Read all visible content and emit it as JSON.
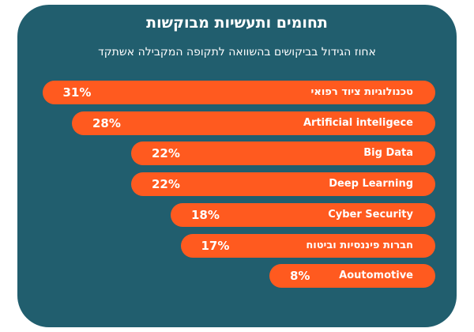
{
  "chart_data": {
    "type": "bar",
    "orientation": "horizontal",
    "title": "תחומים ותעשיות מבוקשות",
    "subtitle": "אחוז הגידול בביקושים בהשוואה לתקופה המקבילה אשתקד",
    "categories": [
      "טכנולוגיות ציוד רפואי",
      "Artificial inteligece",
      "Big Data",
      "Deep Learning",
      "Cyber Security",
      "חברות פיננסיות וביטוח",
      "Aoutomotive"
    ],
    "values": [
      31,
      28,
      22,
      22,
      18,
      17,
      8
    ],
    "value_labels": [
      "31%",
      "28%",
      "22%",
      "22%",
      "18%",
      "17%",
      "8%"
    ],
    "unit": "%",
    "xlabel": "",
    "ylabel": ""
  },
  "colors": {
    "background": "#215e6e",
    "bar": "#ff5a1f",
    "text": "#ffffff"
  }
}
